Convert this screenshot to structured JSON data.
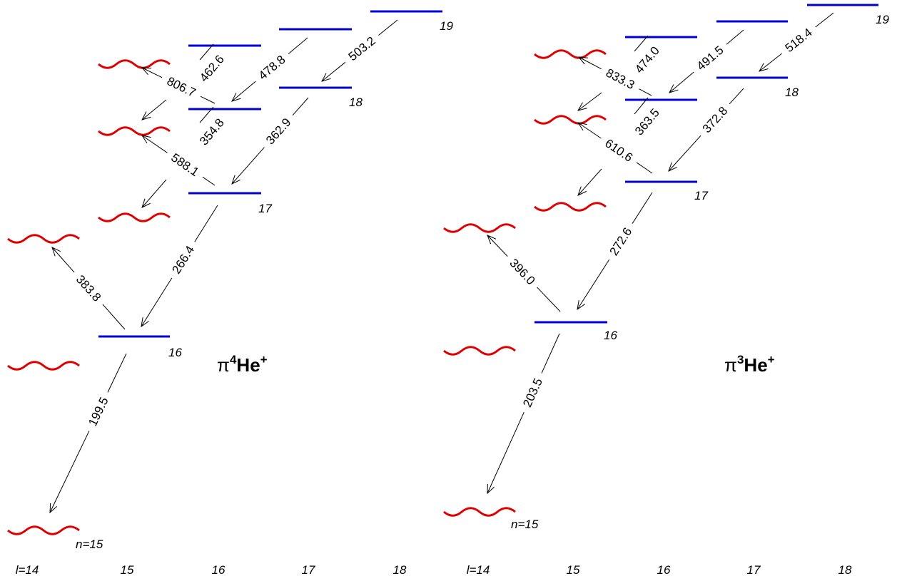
{
  "panels": [
    {
      "title": {
        "pi": "π",
        "mass": "4",
        "element": "He",
        "charge": "+"
      },
      "l_labels": [
        "l=14",
        "15",
        "16",
        "17",
        "18"
      ],
      "n_labels": {
        "n15": "n=15",
        "n16": "16",
        "n17": "17",
        "n18": "18",
        "n19": "19"
      },
      "transitions": [
        "199.5",
        "383.8",
        "266.4",
        "588.1",
        "354.8",
        "362.9",
        "806.7",
        "462.6",
        "478.8",
        "503.2"
      ]
    },
    {
      "title": {
        "pi": "π",
        "mass": "3",
        "element": "He",
        "charge": "+"
      },
      "l_labels": [
        "l=14",
        "15",
        "16",
        "17",
        "18"
      ],
      "n_labels": {
        "n15": "n=15",
        "n16": "16",
        "n17": "17",
        "n18": "18",
        "n19": "19"
      },
      "transitions": [
        "203.5",
        "396.0",
        "272.6",
        "610.6",
        "363.5",
        "372.8",
        "833.3",
        "474.0",
        "491.5",
        "518.4"
      ]
    }
  ],
  "colors": {
    "levels": "#0000d0",
    "auger_levels": "#e00000",
    "transitions": "#000000"
  }
}
